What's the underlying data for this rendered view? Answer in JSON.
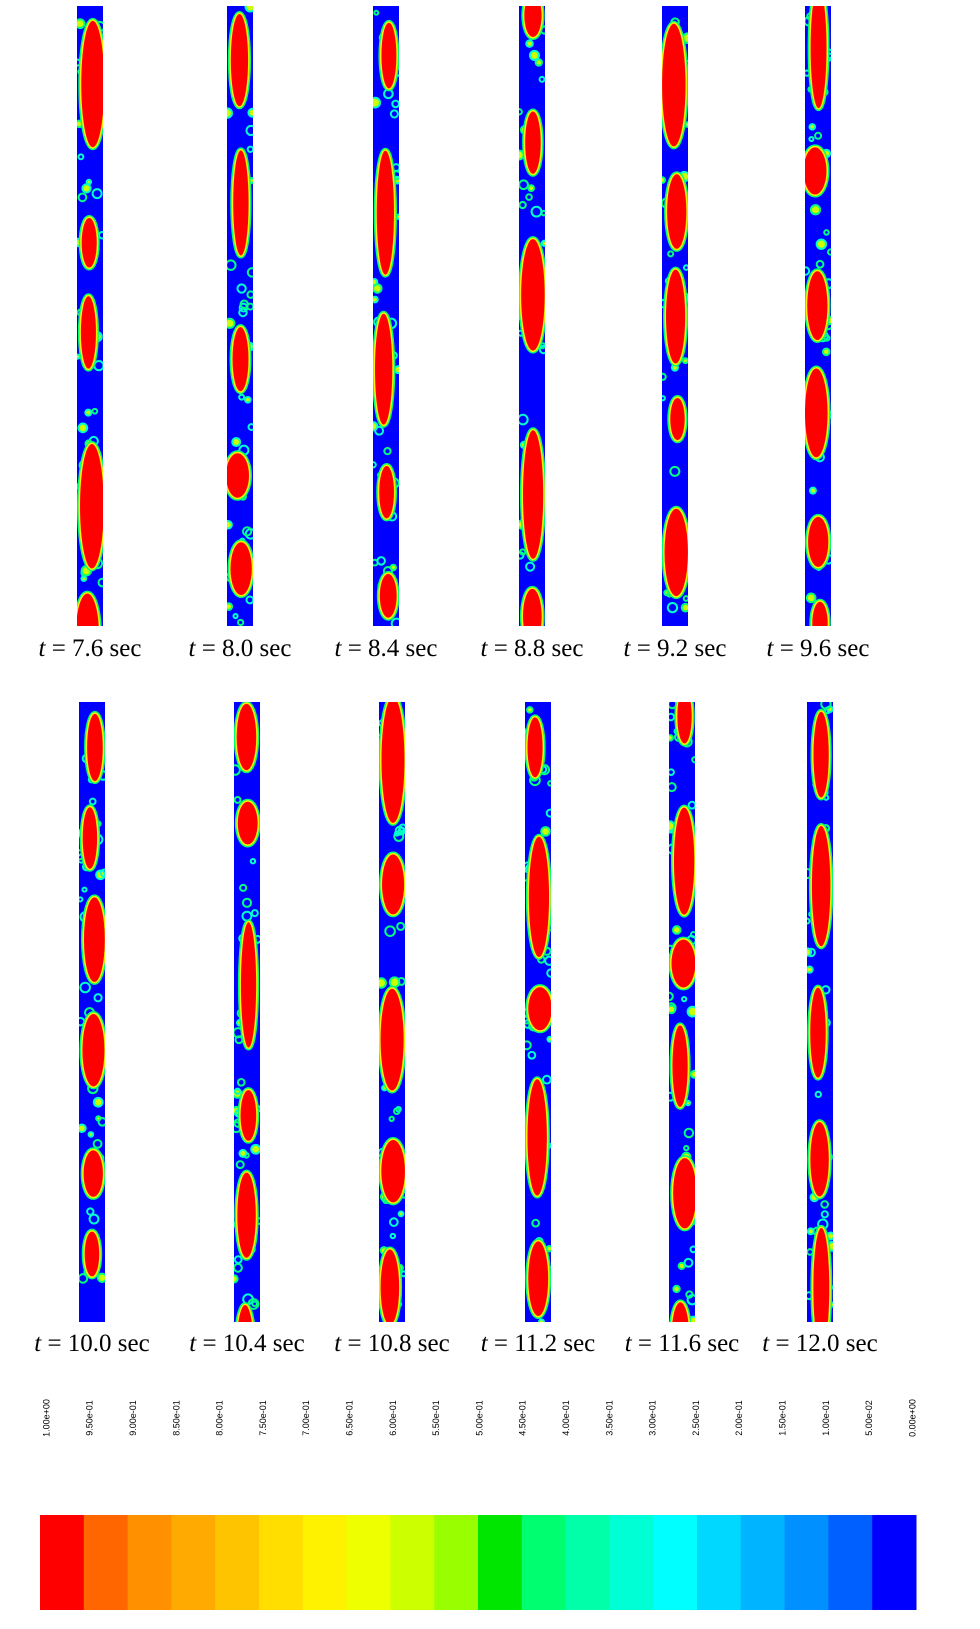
{
  "panels": [
    {
      "var": "t",
      "text": "= 7.6 sec"
    },
    {
      "var": "t",
      "text": "= 8.0 sec"
    },
    {
      "var": "t",
      "text": "= 8.4 sec"
    },
    {
      "var": "t",
      "text": "= 8.8 sec"
    },
    {
      "var": "t",
      "text": "= 9.2 sec"
    },
    {
      "var": "t",
      "text": "= 9.6 sec"
    },
    {
      "var": "t",
      "text": "= 10.0 sec"
    },
    {
      "var": "t",
      "text": "= 10.4 sec"
    },
    {
      "var": "t",
      "text": "= 10.8 sec"
    },
    {
      "var": "t",
      "text": "= 11.2 sec"
    },
    {
      "var": "t",
      "text": "= 11.6 sec"
    },
    {
      "var": "t",
      "text": "= 12.0 sec"
    }
  ],
  "colorbar": {
    "labels": [
      "1.00e+00",
      "9.50e-01",
      "9.00e-01",
      "8.50e-01",
      "8.00e-01",
      "7.50e-01",
      "7.00e-01",
      "6.50e-01",
      "6.00e-01",
      "5.50e-01",
      "5.00e-01",
      "4.50e-01",
      "4.00e-01",
      "3.50e-01",
      "3.00e-01",
      "2.50e-01",
      "2.00e-01",
      "1.50e-01",
      "1.00e-01",
      "5.00e-02",
      "0.00e+00"
    ],
    "colors": [
      "#ff0000",
      "#ff6600",
      "#ff9000",
      "#ffaa00",
      "#ffc400",
      "#ffde00",
      "#fff200",
      "#eeff00",
      "#ccff00",
      "#99ff00",
      "#00e600",
      "#00ff70",
      "#00ffa8",
      "#00ffd4",
      "#00ffff",
      "#00d8ff",
      "#00b4ff",
      "#0090ff",
      "#0060ff",
      "#0000ff"
    ]
  }
}
